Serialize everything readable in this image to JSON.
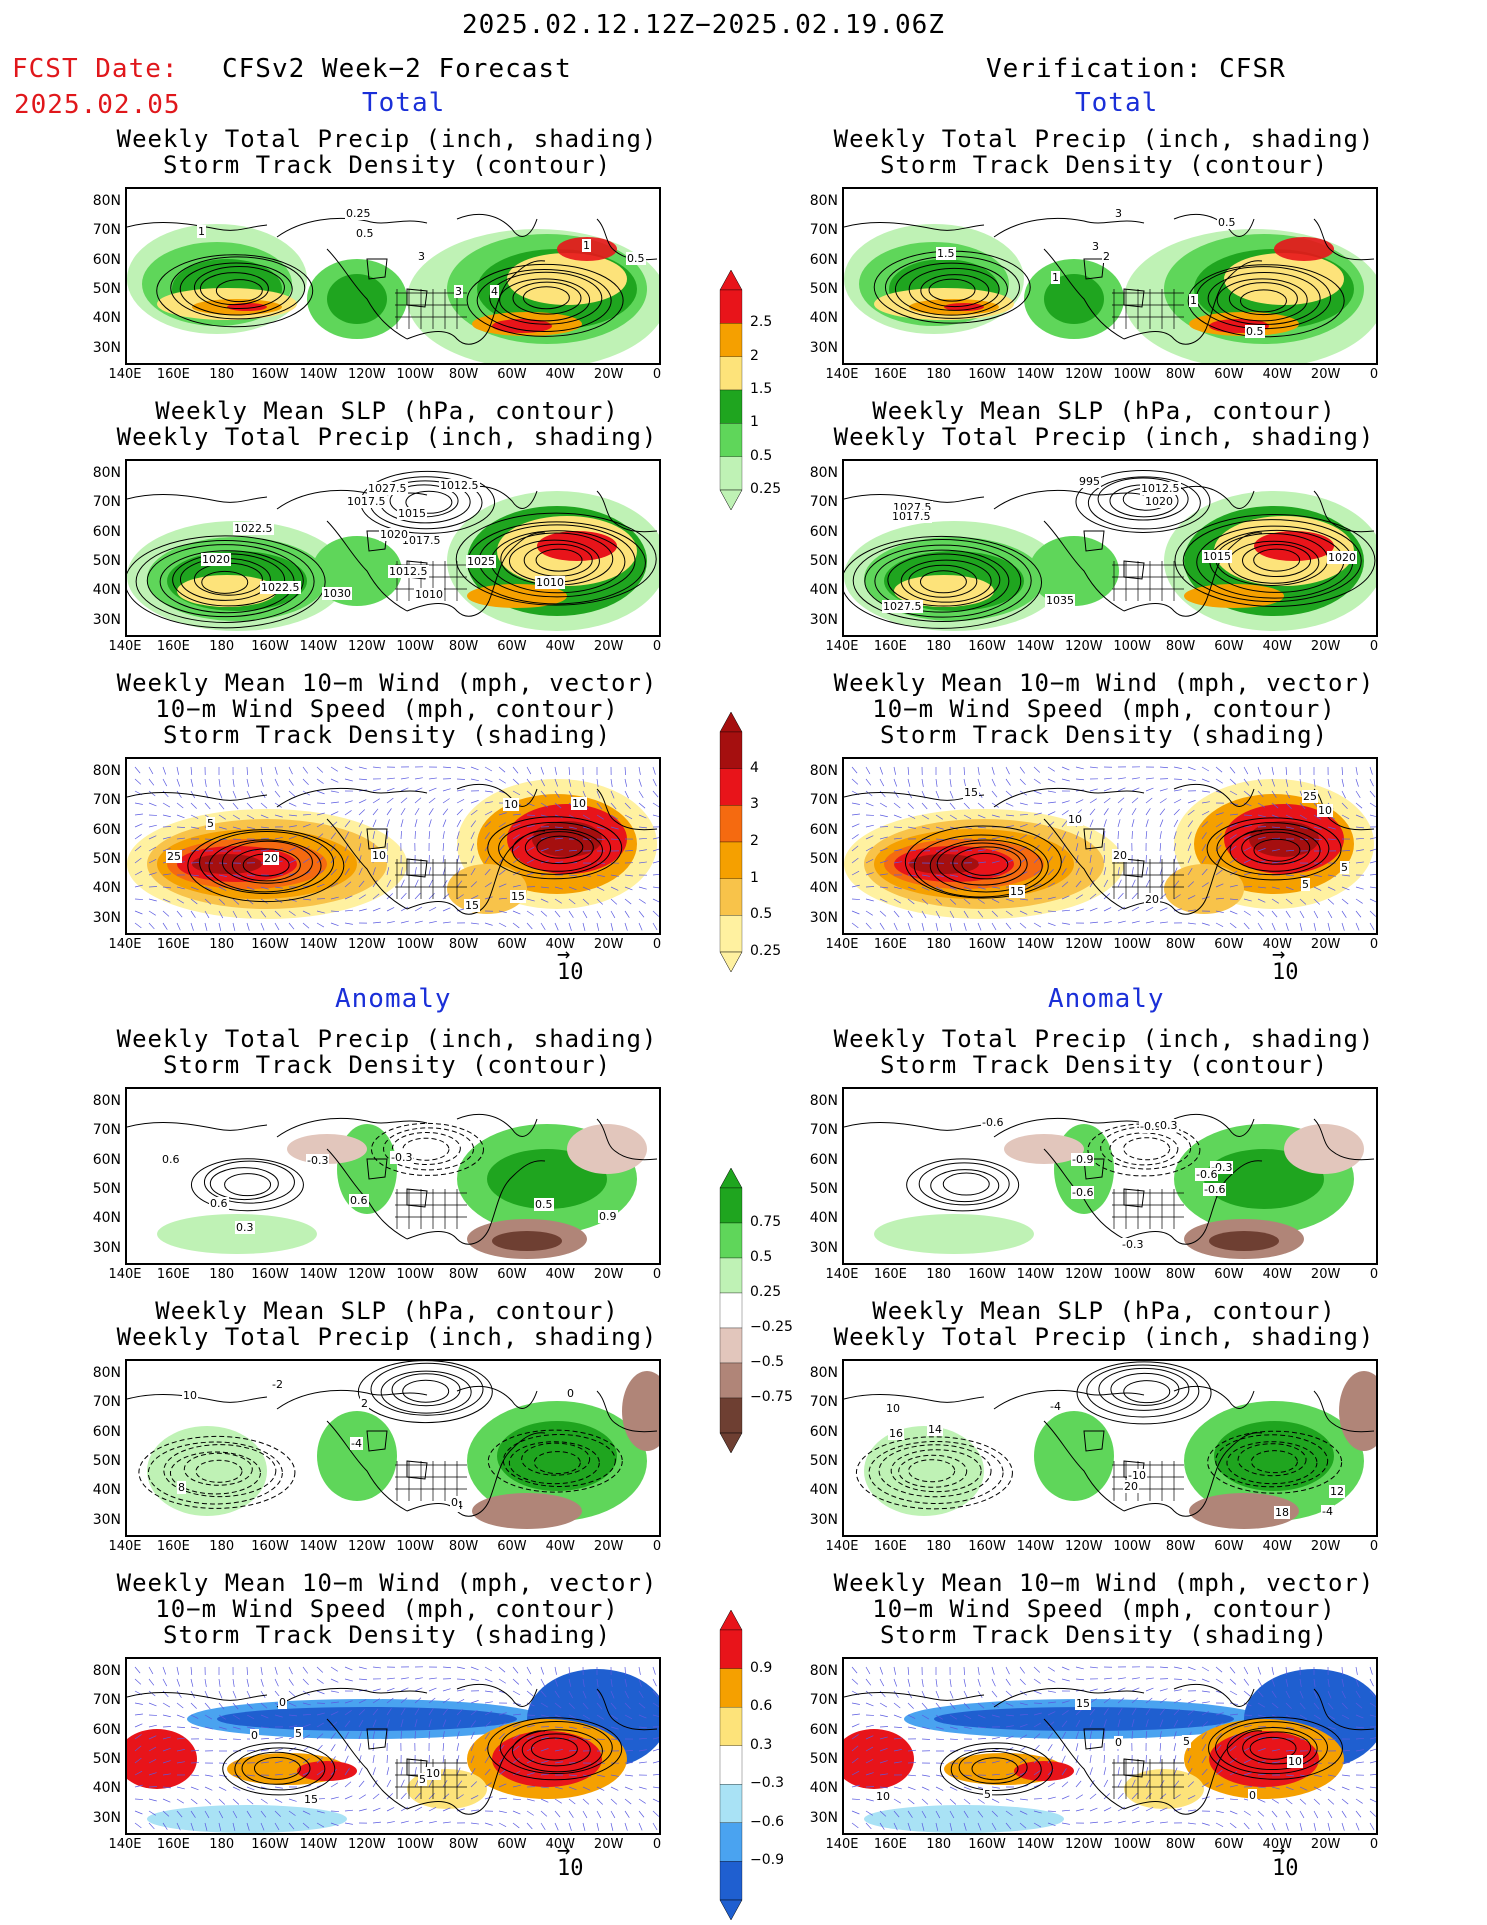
{
  "header": {
    "date_range": "2025.02.12.12Z−2025.02.19.06Z",
    "fcst_label": "FCST Date:",
    "fcst_date": "2025.02.05",
    "left_title": "CFSv2 Week−2 Forecast",
    "right_title": "Verification: CFSR"
  },
  "sections": {
    "total": "Total",
    "anomaly": "Anomaly"
  },
  "panel_titles": {
    "precip_storm": [
      "Weekly Total Precip (inch, shading)",
      "Storm Track Density (contour)"
    ],
    "slp_precip": [
      "Weekly Mean SLP (hPa, contour)",
      "Weekly Total Precip (inch, shading)"
    ],
    "wind_storm": [
      "Weekly Mean 10−m Wind (mph, vector)",
      "10−m Wind Speed (mph, contour)",
      "Storm Track Density (shading)"
    ]
  },
  "axes": {
    "lat_ticks": [
      "80N",
      "70N",
      "60N",
      "50N",
      "40N",
      "30N"
    ],
    "lon_ticks": [
      "140E",
      "160E",
      "180",
      "160W",
      "140W",
      "120W",
      "100W",
      "80W",
      "60W",
      "40W",
      "20W",
      "0"
    ]
  },
  "vector_ref": "10",
  "colorbars": {
    "total_precip": {
      "labels": [
        "2.5",
        "2",
        "1.5",
        "1",
        "0.5",
        "0.25"
      ],
      "colors": [
        "#e8141a",
        "#f5a000",
        "#fde37a",
        "#1fa51f",
        "#5fd65a",
        "#bff2b5"
      ]
    },
    "total_storm": {
      "labels": [
        "4",
        "3",
        "2",
        "1",
        "0.5",
        "0.25"
      ],
      "colors": [
        "#a50f0f",
        "#e8141a",
        "#f56a10",
        "#f5a000",
        "#f8c34a",
        "#fff1a0"
      ]
    },
    "anom_precip": {
      "labels": [
        "0.75",
        "0.5",
        "0.25",
        "−0.25",
        "−0.5",
        "−0.75"
      ],
      "colors": [
        "#1fa51f",
        "#5fd65a",
        "#bff2b5",
        "#ffffff",
        "#e2c6bc",
        "#b08578",
        "#6e3f32"
      ]
    },
    "anom_storm": {
      "labels": [
        "0.9",
        "0.6",
        "0.3",
        "−0.3",
        "−0.6",
        "−0.9"
      ],
      "colors": [
        "#e8141a",
        "#f5a000",
        "#fde37a",
        "#ffffff",
        "#a9e2f5",
        "#4aa3f0",
        "#1f5fd0"
      ]
    }
  },
  "contour_labels": {
    "fc_precip_total": [
      "0.5",
      "3",
      "4",
      "1",
      "0.25",
      "0.5",
      "3",
      "1"
    ],
    "ob_precip_total": [
      "0.5",
      "1",
      "3",
      "1",
      "3",
      "2",
      "0.5",
      "1.5"
    ],
    "fc_slp_total": [
      "1027.5",
      "1017.5",
      "1017.5",
      "1020",
      "1030",
      "1020",
      "1012.5",
      "1015",
      "1025",
      "1022.5",
      "1022.5",
      "1010",
      "1012.5",
      "1010"
    ],
    "ob_slp_total": [
      "1035",
      "1027.5",
      "1027.5",
      "1017.5",
      "1020",
      "1020",
      "1015",
      "1012.5",
      "995"
    ],
    "fc_wind_total": [
      "10",
      "10",
      "10",
      "5",
      "15",
      "20",
      "25",
      "15"
    ],
    "ob_wind_total": [
      "10",
      "15",
      "20",
      "5",
      "10",
      "15",
      "20",
      "25",
      "5"
    ],
    "fc_precip_anom": [
      "-0.3",
      "-0.3",
      "0.3",
      "0.6",
      "0.6",
      "0.6",
      "0.5",
      "0.9"
    ],
    "ob_precip_anom": [
      "-0.9",
      "-0.3",
      "-0.9",
      "-0.6",
      "-0.6",
      "-0.3",
      "0.3",
      "-0.6",
      "-0.6"
    ],
    "fc_slp_anom": [
      "10",
      "8",
      "0",
      "-4",
      "-2",
      "0",
      "-4",
      "2"
    ],
    "ob_slp_anom": [
      "14",
      "20",
      "16",
      "18",
      "12",
      "-10",
      "10",
      "-4",
      "-4"
    ],
    "fc_wind_anom": [
      "5",
      "0",
      "5",
      "10",
      "15",
      "0"
    ],
    "ob_wind_anom": [
      "0",
      "5",
      "5",
      "10",
      "15",
      "10",
      "0"
    ]
  }
}
